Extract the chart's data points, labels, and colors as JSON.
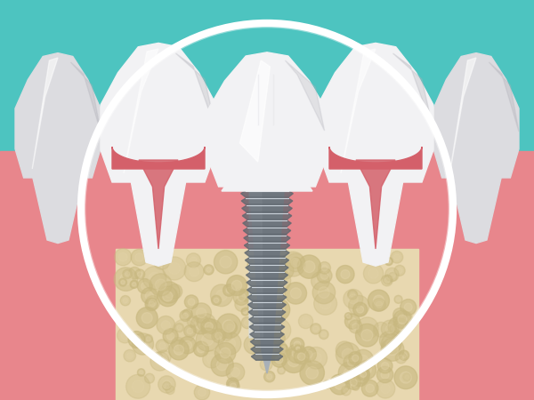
{
  "bg_color": "#4dc4c0",
  "gum_color": "#e8868c",
  "gum_dark": "#d4606a",
  "gum_light": "#f0a0a8",
  "bone_color": "#e8d8b0",
  "bone_dot": "#c8b880",
  "tooth_white": "#f2f2f4",
  "tooth_highlight": "#ffffff",
  "tooth_mid": "#dcdce0",
  "tooth_shadow": "#b0b0b8",
  "implant_silver": "#a8b0b8",
  "implant_dark": "#606870",
  "implant_light": "#d8e0e8",
  "implant_mid": "#8898a8",
  "circle_white": "#ffffff",
  "fig_w": 6.0,
  "fig_h": 4.5,
  "dpi": 100
}
